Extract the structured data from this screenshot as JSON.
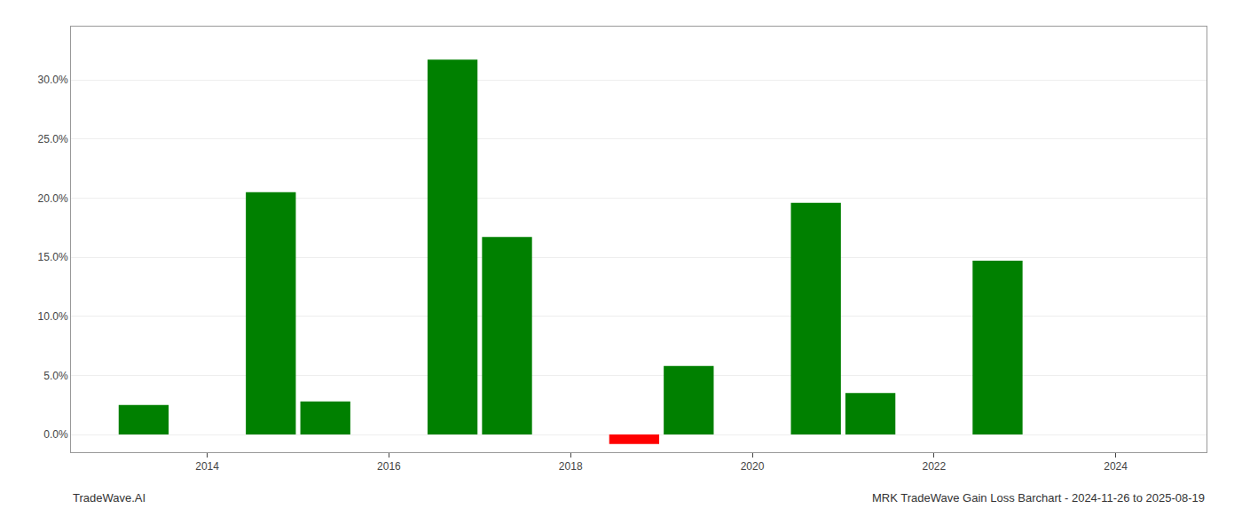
{
  "chart_data": {
    "type": "bar",
    "title": "MRK TradeWave Gain Loss Barchart - 2024-11-26 to 2025-08-19",
    "annotations": [
      "TradeWave.AI"
    ],
    "x": [
      2013.3,
      2014.7,
      2015.3,
      2016.7,
      2017.3,
      2018.7,
      2019.3,
      2020.7,
      2021.3,
      2022.7,
      2023.3
    ],
    "values": [
      0.025,
      0.205,
      0.028,
      0.317,
      0.167,
      -0.008,
      0.058,
      0.196,
      0.035,
      0.147,
      0.0
    ],
    "colors": [
      "#008000",
      "#008000",
      "#008000",
      "#008000",
      "#008000",
      "#ff0000",
      "#008000",
      "#008000",
      "#008000",
      "#008000",
      "#008000"
    ],
    "xlim": [
      2012.5,
      2025.0
    ],
    "xticks": [
      2014,
      2016,
      2018,
      2020,
      2022,
      2024
    ],
    "ylim": [
      -0.015,
      0.345
    ],
    "yticks": [
      {
        "value": 0.0,
        "label": "0.0%"
      },
      {
        "value": 0.05,
        "label": "5.0%"
      },
      {
        "value": 0.1,
        "label": "10.0%"
      },
      {
        "value": 0.15,
        "label": "15.0%"
      },
      {
        "value": 0.2,
        "label": "20.0%"
      },
      {
        "value": 0.25,
        "label": "25.0%"
      },
      {
        "value": 0.3,
        "label": "30.0%"
      }
    ],
    "grid": true
  }
}
